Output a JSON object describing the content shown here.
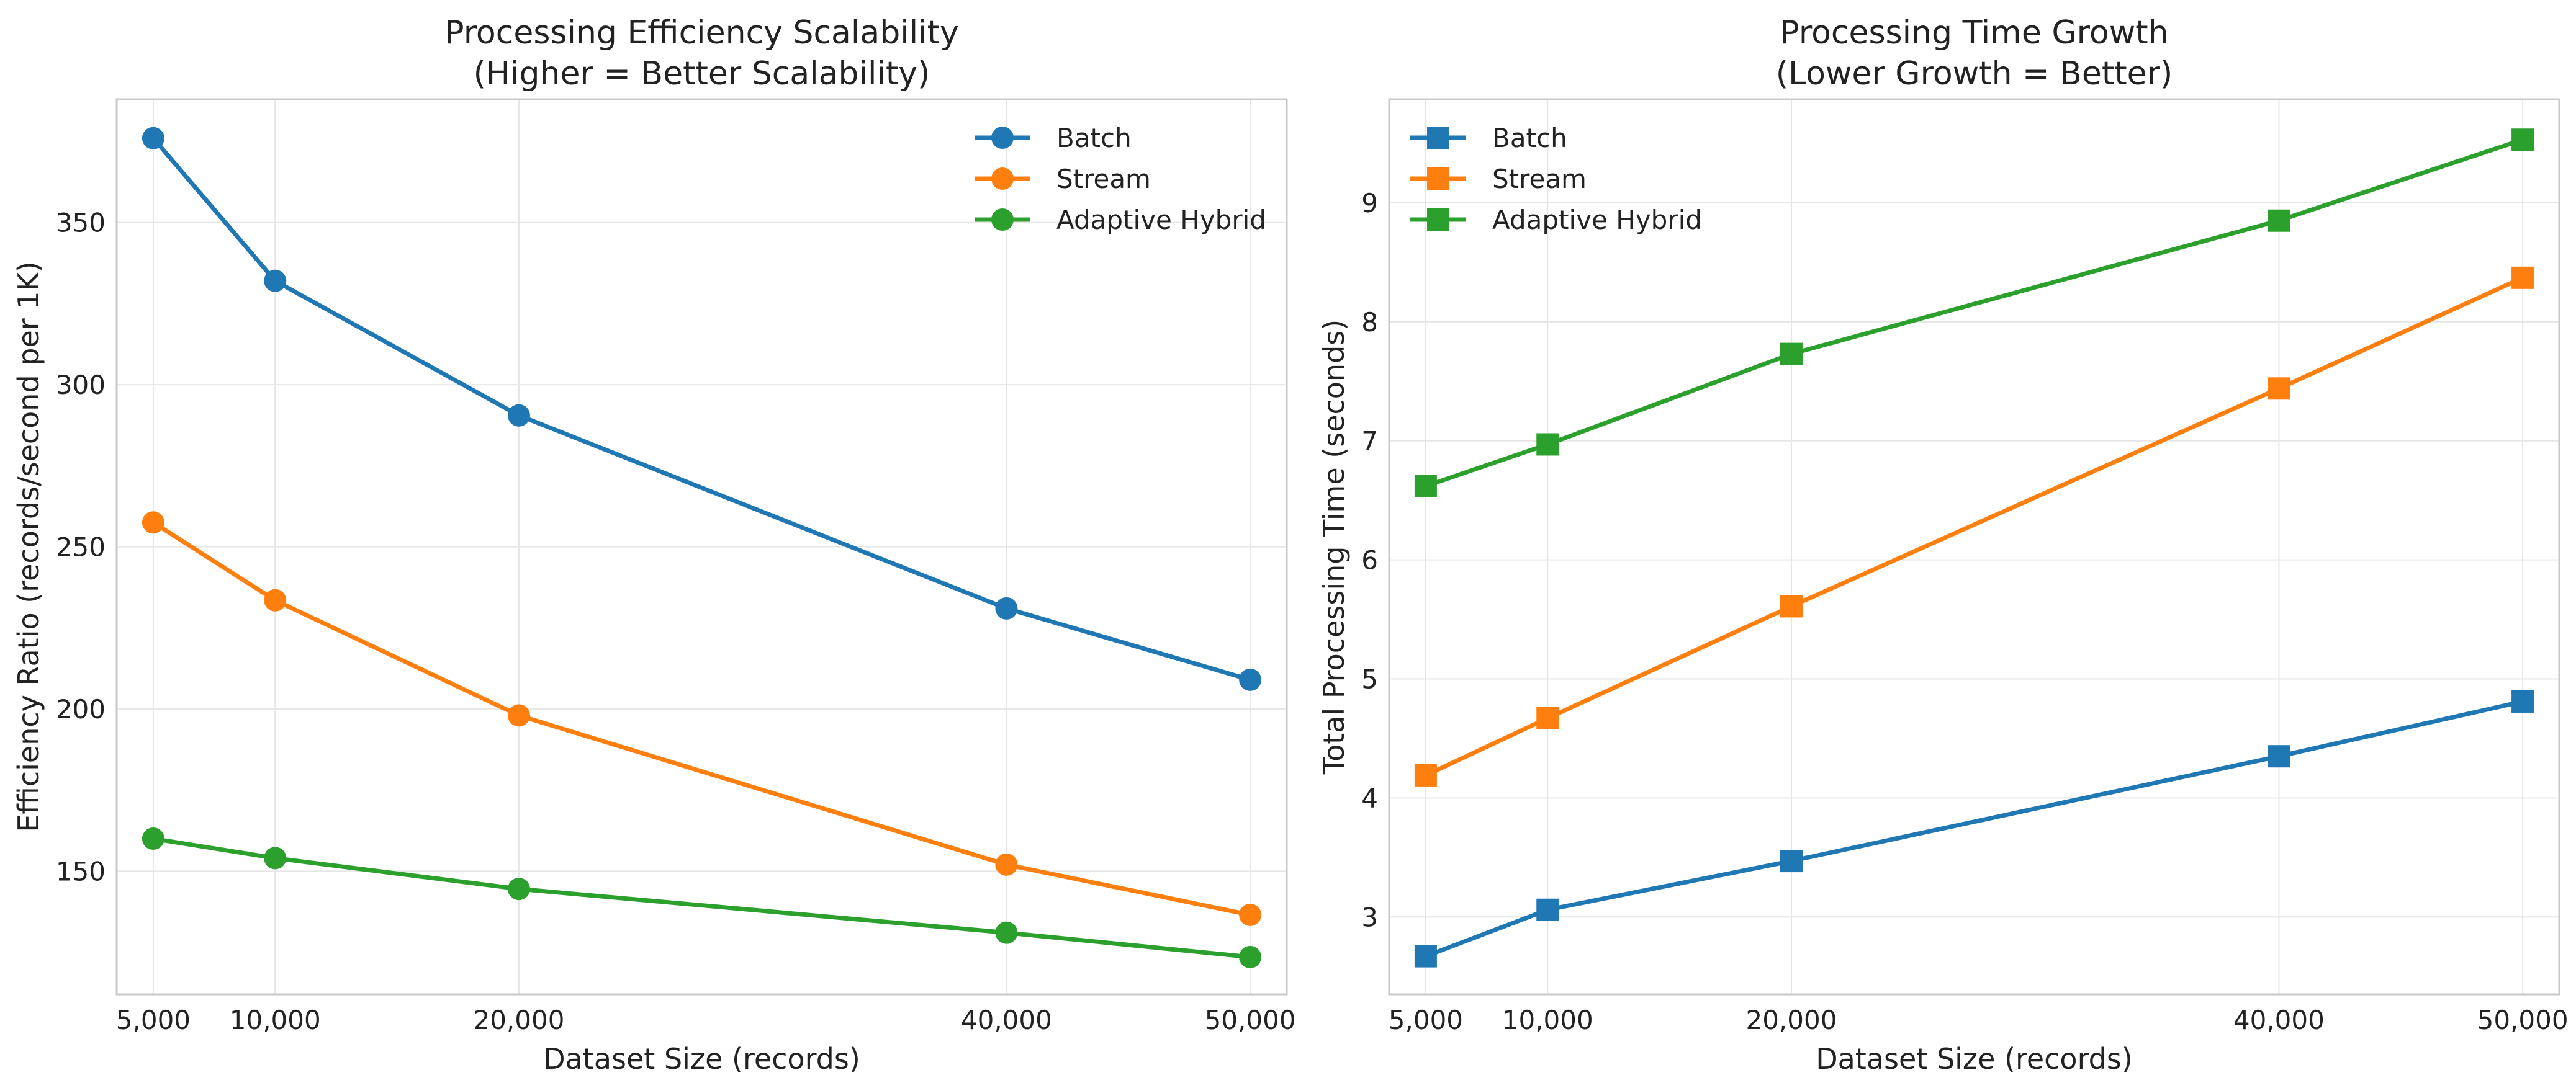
{
  "chart_data": [
    {
      "type": "line",
      "title": "Processing Efficiency Scalability\n(Higher = Better Scalability)",
      "xlabel": "Dataset Size (records)",
      "ylabel": "Efficiency Ratio (records/second per 1K)",
      "x": [
        5000,
        10000,
        20000,
        40000,
        50000
      ],
      "x_tick_labels": [
        "5,000",
        "10,000",
        "20,000",
        "40,000",
        "50,000"
      ],
      "xlim": [
        3500,
        51500
      ],
      "ylim": [
        112,
        388
      ],
      "y_ticks": [
        150,
        200,
        250,
        300,
        350
      ],
      "marker": "circle",
      "grid": true,
      "legend": "top-right",
      "series": [
        {
          "name": "Batch",
          "color": "#1f77b4",
          "values": [
            376,
            332,
            290.5,
            231,
            209
          ]
        },
        {
          "name": "Stream",
          "color": "#ff7f0e",
          "values": [
            257.5,
            233.5,
            198,
            152,
            136.5
          ]
        },
        {
          "name": "Adaptive Hybrid",
          "color": "#2ca02c",
          "values": [
            160,
            154,
            144.5,
            131,
            123.5
          ]
        }
      ]
    },
    {
      "type": "line",
      "title": "Processing Time Growth\n(Lower Growth = Better)",
      "xlabel": "Dataset Size (records)",
      "ylabel": "Total Processing Time (seconds)",
      "x": [
        5000,
        10000,
        20000,
        40000,
        50000
      ],
      "x_tick_labels": [
        "5,000",
        "10,000",
        "20,000",
        "40,000",
        "50,000"
      ],
      "xlim": [
        3500,
        51500
      ],
      "ylim": [
        2.35,
        9.87
      ],
      "y_ticks": [
        3,
        4,
        5,
        6,
        7,
        8,
        9
      ],
      "marker": "square",
      "grid": true,
      "legend": "top-left",
      "series": [
        {
          "name": "Batch",
          "color": "#1f77b4",
          "values": [
            2.67,
            3.06,
            3.47,
            4.35,
            4.81
          ]
        },
        {
          "name": "Stream",
          "color": "#ff7f0e",
          "values": [
            4.19,
            4.67,
            5.61,
            7.44,
            8.37
          ]
        },
        {
          "name": "Adaptive Hybrid",
          "color": "#2ca02c",
          "values": [
            6.62,
            6.97,
            7.73,
            8.85,
            9.53
          ]
        }
      ]
    }
  ]
}
